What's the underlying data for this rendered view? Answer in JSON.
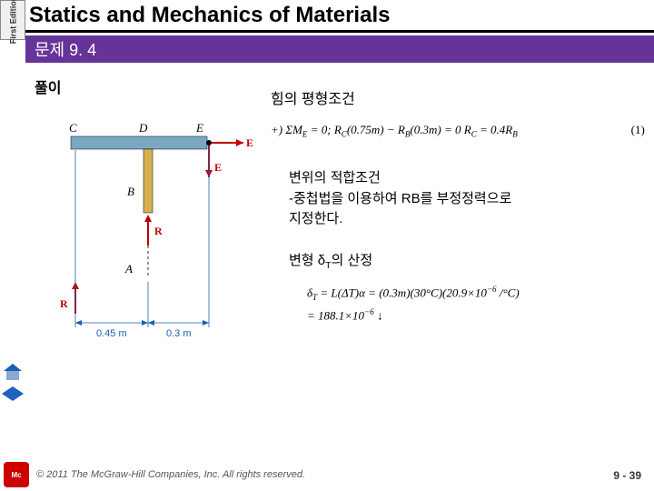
{
  "spine": "First Edition",
  "title": "Statics and Mechanics of Materials",
  "subtitle": "문제 9. 4",
  "solution_label": "풀이",
  "heading1": "힘의 평형조건",
  "equation1": "+) ΣM<sub>E</sub> = 0;  R<sub>C</sub>(0.75m) − R<sub>B</sub>(0.3m) = 0   R<sub>C</sub> = 0.4R<sub>B</sub>",
  "equation1_num": "(1)",
  "heading2_line1": "변위의 적합조건",
  "heading2_line2": "-중첩법을 이용하여 RB를 부정정력으로",
  "heading2_line3": "지정한다.",
  "heading3": "변형 δ<sub>T</sub>의 산정",
  "equation2_line1": "δ<sub>T</sub> = L(ΔT)α = (0.3m)(30°C)(20.9×10<sup>−6</sup> /°C)",
  "equation2_line2": "= 188.1×10<sup>−6</sup> ↓",
  "diagram": {
    "labels": {
      "C": "C",
      "D": "D",
      "E": "E",
      "B": "B",
      "A": "A",
      "Ex": "E<sub>x</sub>",
      "Ey": "E<sub>y</sub>",
      "RB": "R<sub>B</sub>",
      "RC": "R<sub>C</sub>"
    },
    "dims": {
      "d1": "0.45 m",
      "d2": "0.3 m"
    },
    "colors": {
      "member": "#7aa8c4",
      "rod": "#d4b050",
      "arrow": "#c00000",
      "dim": "#1a5fb4",
      "text": "#000000"
    }
  },
  "copyright": "© 2011 The McGraw-Hill Companies, Inc. All rights reserved.",
  "pagenum": "9 - 39",
  "nav_colors": {
    "home_roof": "#1a5fb4",
    "home_wall": "#8aa8d0",
    "prev": "#2060c0",
    "next": "#2060c0"
  }
}
